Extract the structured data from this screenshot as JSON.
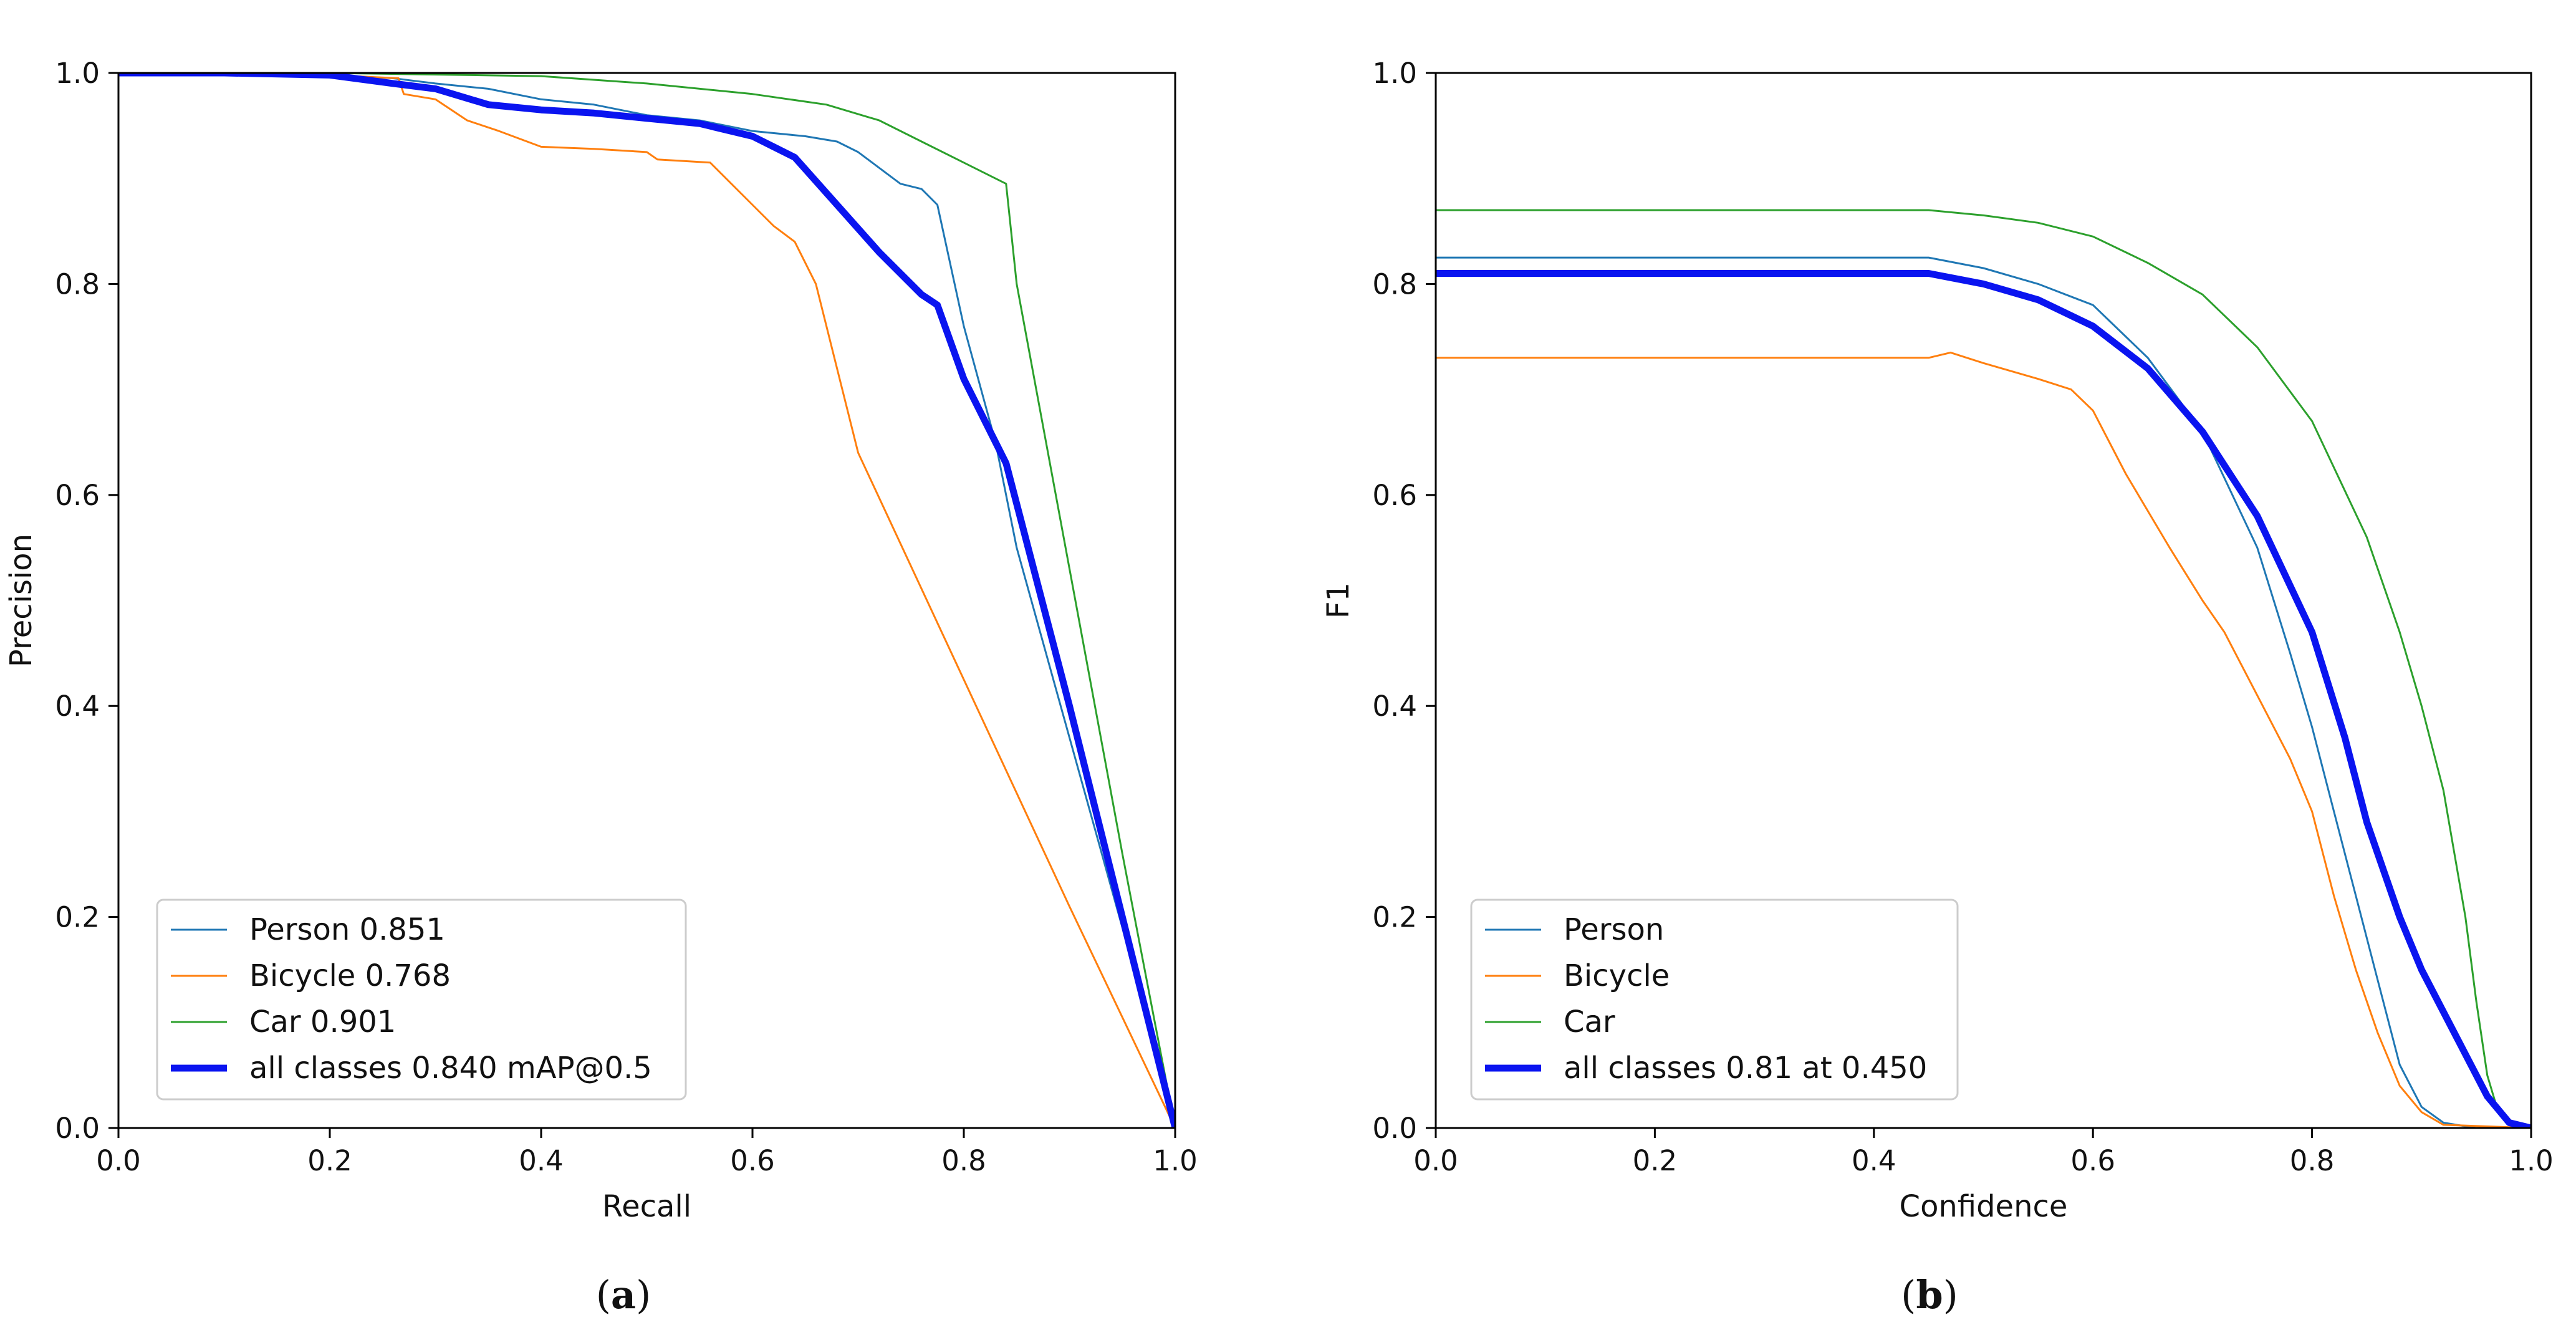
{
  "figure": {
    "caption_a_open": "(",
    "caption_a_letter": "a",
    "caption_a_close": ")",
    "caption_b_open": "(",
    "caption_b_letter": "b",
    "caption_b_close": ")"
  },
  "colors": {
    "person": "#1f77b4",
    "bicycle": "#ff7f0e",
    "car": "#2ca02c",
    "all": "#0a14f0"
  },
  "chart_data": [
    {
      "type": "line",
      "title": "",
      "xlabel": "Recall",
      "ylabel": "Precision",
      "xlim": [
        0.0,
        1.0
      ],
      "ylim": [
        0.0,
        1.0
      ],
      "xticks": [
        "0.0",
        "0.2",
        "0.4",
        "0.6",
        "0.8",
        "1.0"
      ],
      "yticks": [
        "0.0",
        "0.2",
        "0.4",
        "0.6",
        "0.8",
        "1.0"
      ],
      "legend_position": "lower-left",
      "series": [
        {
          "name": "Person 0.851",
          "color": "#1f77b4",
          "width": "thin",
          "x": [
            0.0,
            0.1,
            0.2,
            0.26,
            0.3,
            0.35,
            0.4,
            0.45,
            0.5,
            0.55,
            0.6,
            0.65,
            0.68,
            0.7,
            0.72,
            0.74,
            0.76,
            0.775,
            0.8,
            0.83,
            0.85,
            0.9,
            0.95,
            1.0
          ],
          "y": [
            1.0,
            1.0,
            0.998,
            0.995,
            0.99,
            0.985,
            0.975,
            0.97,
            0.96,
            0.955,
            0.945,
            0.94,
            0.935,
            0.925,
            0.91,
            0.895,
            0.89,
            0.875,
            0.76,
            0.65,
            0.55,
            0.37,
            0.19,
            0.0
          ]
        },
        {
          "name": "Bicycle 0.768",
          "color": "#ff7f0e",
          "width": "thin",
          "x": [
            0.0,
            0.1,
            0.2,
            0.265,
            0.27,
            0.3,
            0.33,
            0.36,
            0.4,
            0.45,
            0.5,
            0.51,
            0.56,
            0.58,
            0.6,
            0.62,
            0.64,
            0.66,
            0.7,
            0.8,
            0.9,
            1.0
          ],
          "y": [
            1.0,
            1.0,
            0.998,
            0.995,
            0.98,
            0.975,
            0.955,
            0.945,
            0.93,
            0.928,
            0.925,
            0.918,
            0.915,
            0.895,
            0.875,
            0.855,
            0.84,
            0.8,
            0.64,
            0.425,
            0.21,
            0.0
          ]
        },
        {
          "name": "Car 0.901",
          "color": "#2ca02c",
          "width": "thin",
          "x": [
            0.0,
            0.2,
            0.4,
            0.5,
            0.6,
            0.67,
            0.72,
            0.76,
            0.8,
            0.84,
            0.85,
            0.9,
            0.95,
            1.0
          ],
          "y": [
            1.0,
            1.0,
            0.997,
            0.99,
            0.98,
            0.97,
            0.955,
            0.935,
            0.915,
            0.895,
            0.8,
            0.53,
            0.26,
            0.0
          ]
        },
        {
          "name": "all classes 0.840 mAP@0.5",
          "color": "#0a14f0",
          "width": "thick",
          "x": [
            0.0,
            0.1,
            0.2,
            0.26,
            0.3,
            0.35,
            0.4,
            0.45,
            0.5,
            0.55,
            0.6,
            0.62,
            0.64,
            0.68,
            0.72,
            0.76,
            0.775,
            0.8,
            0.84,
            0.9,
            0.95,
            1.0
          ],
          "y": [
            1.0,
            1.0,
            0.998,
            0.99,
            0.985,
            0.97,
            0.965,
            0.962,
            0.957,
            0.952,
            0.94,
            0.93,
            0.92,
            0.875,
            0.83,
            0.79,
            0.78,
            0.71,
            0.63,
            0.4,
            0.2,
            0.0
          ]
        }
      ]
    },
    {
      "type": "line",
      "title": "",
      "xlabel": "Confidence",
      "ylabel": "F1",
      "xlim": [
        0.0,
        1.0
      ],
      "ylim": [
        0.0,
        1.0
      ],
      "xticks": [
        "0.0",
        "0.2",
        "0.4",
        "0.6",
        "0.8",
        "1.0"
      ],
      "yticks": [
        "0.0",
        "0.2",
        "0.4",
        "0.6",
        "0.8",
        "1.0"
      ],
      "legend_position": "lower-left",
      "series": [
        {
          "name": "Person",
          "color": "#1f77b4",
          "width": "thin",
          "x": [
            0.0,
            0.2,
            0.4,
            0.45,
            0.5,
            0.55,
            0.6,
            0.65,
            0.7,
            0.75,
            0.78,
            0.8,
            0.82,
            0.84,
            0.86,
            0.88,
            0.9,
            0.92,
            0.95,
            1.0
          ],
          "y": [
            0.825,
            0.825,
            0.825,
            0.825,
            0.815,
            0.8,
            0.78,
            0.73,
            0.66,
            0.55,
            0.45,
            0.38,
            0.3,
            0.22,
            0.14,
            0.06,
            0.02,
            0.005,
            0.0,
            0.0
          ]
        },
        {
          "name": "Bicycle",
          "color": "#ff7f0e",
          "width": "thin",
          "x": [
            0.0,
            0.2,
            0.4,
            0.45,
            0.47,
            0.5,
            0.55,
            0.58,
            0.6,
            0.63,
            0.67,
            0.7,
            0.72,
            0.75,
            0.78,
            0.8,
            0.82,
            0.84,
            0.86,
            0.88,
            0.9,
            0.92,
            1.0
          ],
          "y": [
            0.73,
            0.73,
            0.73,
            0.73,
            0.735,
            0.725,
            0.71,
            0.7,
            0.68,
            0.62,
            0.55,
            0.5,
            0.47,
            0.41,
            0.35,
            0.3,
            0.22,
            0.15,
            0.09,
            0.04,
            0.015,
            0.003,
            0.0
          ]
        },
        {
          "name": "Car",
          "color": "#2ca02c",
          "width": "thin",
          "x": [
            0.0,
            0.2,
            0.4,
            0.45,
            0.5,
            0.55,
            0.6,
            0.65,
            0.7,
            0.75,
            0.8,
            0.85,
            0.88,
            0.9,
            0.92,
            0.94,
            0.95,
            0.96,
            0.97,
            0.98,
            1.0
          ],
          "y": [
            0.87,
            0.87,
            0.87,
            0.87,
            0.865,
            0.858,
            0.845,
            0.82,
            0.79,
            0.74,
            0.67,
            0.56,
            0.47,
            0.4,
            0.32,
            0.2,
            0.12,
            0.05,
            0.015,
            0.003,
            0.0
          ]
        },
        {
          "name": "all classes 0.81 at 0.450",
          "color": "#0a14f0",
          "width": "thick",
          "x": [
            0.0,
            0.2,
            0.4,
            0.45,
            0.5,
            0.55,
            0.6,
            0.65,
            0.7,
            0.75,
            0.8,
            0.83,
            0.85,
            0.88,
            0.9,
            0.92,
            0.94,
            0.96,
            0.98,
            1.0
          ],
          "y": [
            0.81,
            0.81,
            0.81,
            0.81,
            0.8,
            0.785,
            0.76,
            0.72,
            0.66,
            0.58,
            0.47,
            0.37,
            0.29,
            0.2,
            0.15,
            0.11,
            0.07,
            0.03,
            0.005,
            0.0
          ]
        }
      ]
    }
  ]
}
